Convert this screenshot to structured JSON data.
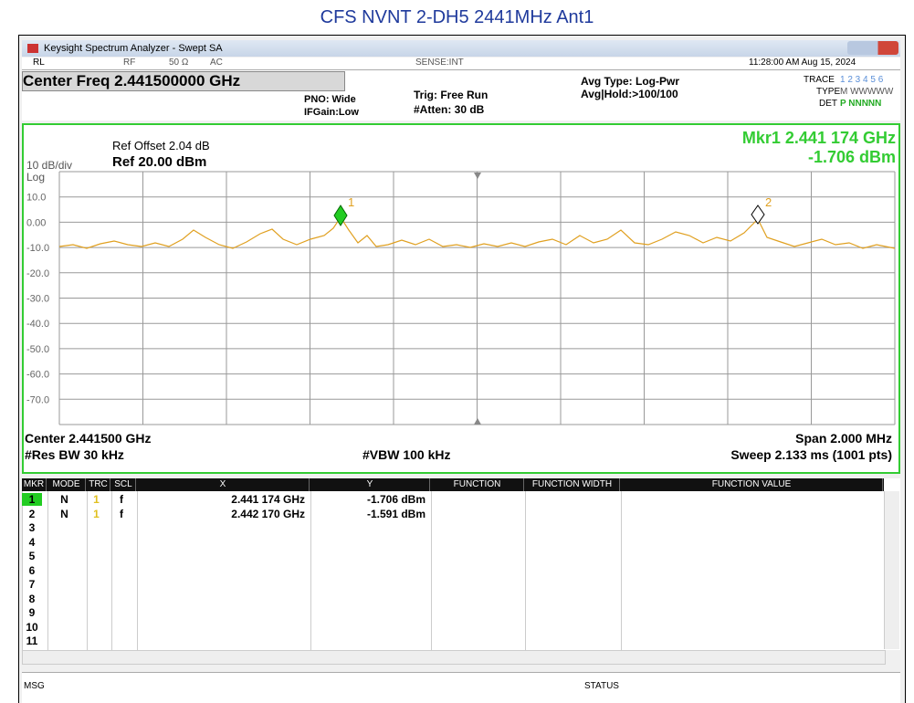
{
  "title": "CFS NVNT 2-DH5 2441MHz Ant1",
  "window": {
    "title": "Keysight Spectrum Analyzer - Swept SA"
  },
  "status_bar": {
    "rl": "RL",
    "rf": "RF",
    "impedance": "50 Ω",
    "coupling": "AC",
    "sense": "SENSE:INT",
    "datetime": "11:28:00 AM Aug 15, 2024"
  },
  "settings": {
    "center_freq": "Center Freq 2.441500000 GHz",
    "pno": "PNO: Wide",
    "ifgain": "IFGain:Low",
    "trig": "Trig: Free Run",
    "atten": "#Atten: 30 dB",
    "avg_type": "Avg Type: Log-Pwr",
    "avg_hold": "Avg|Hold:>100/100",
    "trace_label": "TRACE",
    "trace_value": "1 2 3 4 5 6",
    "type_label": "TYPE",
    "type_value": "M WWWWW",
    "det_label": "DET",
    "det_value": "P NNNNN"
  },
  "plot": {
    "ref_offset": "Ref Offset 2.04 dB",
    "scale": "10 dB/div",
    "ref": "Ref 20.00 dBm",
    "log": "Log",
    "marker_freq": "Mkr1 2.441 174 GHz",
    "marker_amp": "-1.706 dBm",
    "y_labels": [
      "10.0",
      "0.00",
      "-10.0",
      "-20.0",
      "-30.0",
      "-40.0",
      "-50.0",
      "-60.0",
      "-70.0"
    ],
    "markers": [
      "1",
      "2"
    ],
    "center": "Center 2.441500 GHz",
    "span": "Span 2.000 MHz",
    "res_bw": "#Res BW 30 kHz",
    "vbw": "#VBW 100 kHz",
    "sweep": "Sweep  2.133 ms (1001 pts)"
  },
  "marker_table": {
    "headers": [
      "MKR",
      "MODE",
      "TRC",
      "SCL",
      "X",
      "Y",
      "FUNCTION",
      "FUNCTION WIDTH",
      "FUNCTION VALUE"
    ],
    "rows": [
      [
        "1",
        "N",
        "1",
        "f",
        "2.441 174 GHz",
        "-1.706 dBm"
      ],
      [
        "2",
        "N",
        "1",
        "f",
        "2.442 170 GHz",
        "-1.591 dBm"
      ],
      [
        "3"
      ],
      [
        "4"
      ],
      [
        "5"
      ],
      [
        "6"
      ],
      [
        "7"
      ],
      [
        "8"
      ],
      [
        "9"
      ],
      [
        "10"
      ],
      [
        "11"
      ]
    ]
  },
  "footer": {
    "msg": "MSG",
    "status": "STATUS"
  }
}
